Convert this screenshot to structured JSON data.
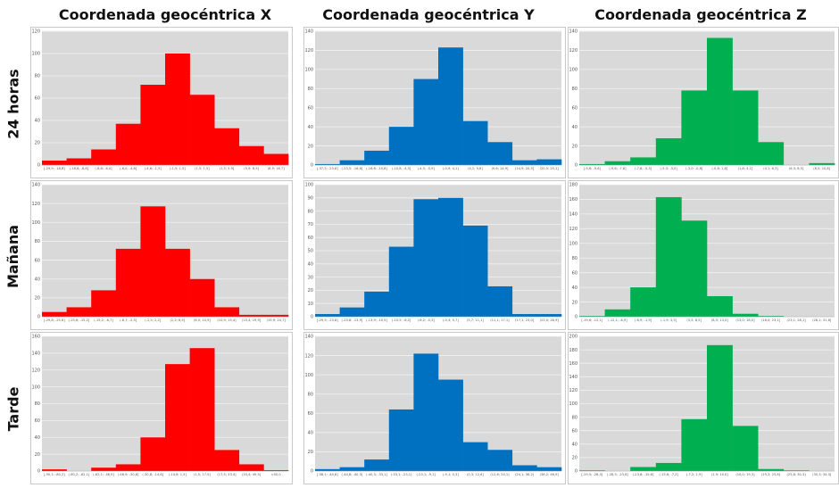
{
  "column_titles": [
    "Coordenada geocéntrica X",
    "Coordenada geocéntrica Y",
    "Coordenada geocéntrica Z"
  ],
  "row_titles": [
    "24 horas",
    "Mañana",
    "Tarde"
  ],
  "colors": {
    "X": "#ff0000",
    "Y": "#0070c0",
    "Z": "#00b050",
    "plot_background": "#d9d9d9"
  },
  "chart_data": [
    {
      "type": "bar",
      "row": "24 horas",
      "column": "Coordenada geocéntrica X",
      "color": "#ff0000",
      "ylim": [
        0,
        120
      ],
      "yticks": [
        0,
        20,
        40,
        60,
        80,
        100,
        120
      ],
      "categories": [
        "[-29,9; -18,8]",
        "(-18,8; -8,8]",
        "(-8,8; -6,0]",
        "(-6,0; -4,6]",
        "(-4,6; -1,5]",
        "(-1,5; 1,5]",
        "(1,5; 1,5]",
        "(1,5; 5,9]",
        "(5,9; 8,9]",
        "(8,9; 16,7]"
      ],
      "values": [
        4,
        6,
        14,
        37,
        72,
        100,
        63,
        33,
        17,
        10
      ],
      "grid": true
    },
    {
      "type": "bar",
      "row": "24 horas",
      "column": "Coordenada geocéntrica Y",
      "color": "#0070c0",
      "ylim": [
        0,
        140
      ],
      "yticks": [
        0,
        20,
        40,
        60,
        80,
        100,
        120,
        140
      ],
      "categories": [
        "[-37,5; -23,8]",
        "(-23,5; -16,6]",
        "(-16,6; -10,8]",
        "(-10,8; -4,5]",
        "(-4,5; -0,9]",
        "(-0,9; 4,1]",
        "(4,1; 9,6]",
        "(9,6; 14,9]",
        "(14,9; 20,5]",
        "(20,5; 25,1]"
      ],
      "values": [
        1,
        5,
        15,
        40,
        90,
        123,
        46,
        24,
        5,
        6
      ],
      "grid": true
    },
    {
      "type": "bar",
      "row": "24 horas",
      "column": "Coordenada geocéntrica Z",
      "color": "#00b050",
      "ylim": [
        0,
        140
      ],
      "yticks": [
        0,
        20,
        40,
        60,
        80,
        100,
        120,
        140
      ],
      "categories": [
        "[-9,6; -9,6]",
        "(-9,6; -7,8]",
        "(-7,8; -5,3]",
        "(-5,3; -3,0]",
        "(-3,0; -0,8]",
        "(-0,8; 1,8]",
        "(1,8; 4,1]",
        "(4,1; 6,3]",
        "(6,3; 8,5]",
        "(8,5; 10,8]"
      ],
      "values": [
        1,
        4,
        8,
        28,
        78,
        133,
        78,
        24,
        0,
        2
      ],
      "grid": true
    },
    {
      "type": "bar",
      "row": "Mañana",
      "column": "Coordenada geocéntrica X",
      "color": "#ff0000",
      "ylim": [
        0,
        140
      ],
      "yticks": [
        0,
        20,
        40,
        60,
        80,
        100,
        120,
        140
      ],
      "categories": [
        "[-29,8; -25,6]",
        "(-25,6; -15,2]",
        "(-15,2; -6,7]",
        "(-6,7; -2,5]",
        "(-2,5; 2,2]",
        "(2,2; 6,5]",
        "(6,5; 10,9]",
        "(10,9; 15,4]",
        "(15,4; 19,9]",
        "(19,9; 24,7]"
      ],
      "values": [
        5,
        10,
        28,
        72,
        117,
        72,
        40,
        10,
        2,
        2
      ],
      "grid": true
    },
    {
      "type": "bar",
      "row": "Mañana",
      "column": "Coordenada geocéntrica Y",
      "color": "#0070c0",
      "ylim": [
        0,
        100
      ],
      "yticks": [
        0,
        10,
        20,
        30,
        40,
        50,
        60,
        70,
        80,
        90,
        100
      ],
      "categories": [
        "[-29,5; -23,8]",
        "(-23,8; -13,9]",
        "(-13,9; -10,5]",
        "(-10,5; -6,2]",
        "(-6,2; -0,3]",
        "(-0,3; 5,7]",
        "(5,7; 11,1]",
        "(11,1; 17,1]",
        "(17,1; 23,0]",
        "(23,0; 28,9]"
      ],
      "values": [
        2,
        7,
        19,
        53,
        89,
        90,
        69,
        23,
        2,
        2
      ],
      "grid": true
    },
    {
      "type": "bar",
      "row": "Mañana",
      "column": "Coordenada geocéntrica Z",
      "color": "#00b050",
      "ylim": [
        0,
        180
      ],
      "yticks": [
        0,
        20,
        40,
        60,
        80,
        100,
        120,
        140,
        160,
        180
      ],
      "categories": [
        "[-19,6; -12,1]",
        "(-12,1; -6,9]",
        "(-6,9; -1,9]",
        "(-1,9; 3,5]",
        "(3,5; 8,5]",
        "(8,5; 13,0]",
        "(13,0; 18,0]",
        "(18,0; 23,1]",
        "(23,1; 28,1]",
        "(28,1; 31,6]"
      ],
      "values": [
        1,
        10,
        40,
        163,
        131,
        28,
        4,
        1,
        0,
        0
      ],
      "grid": true
    },
    {
      "type": "bar",
      "row": "Tarde",
      "column": "Coordenada geocéntrica X",
      "color": "#ff0000",
      "ylim": [
        0,
        160
      ],
      "yticks": [
        0,
        20,
        40,
        60,
        80,
        100,
        120,
        140,
        160
      ],
      "categories": [
        "[-90,1; -80,2]",
        "(-80,2; -62,1]",
        "(-62,1; -46,9]",
        "(-46,9; -30,8]",
        "(-30,8; -14,6]",
        "(-14,6; 1,5]",
        "(1,5; 17,5]",
        "(17,5; 33,4]",
        "(33,4; 49,5]",
        ">50,0"
      ],
      "values": [
        2,
        0,
        4,
        8,
        40,
        127,
        146,
        25,
        8,
        1
      ],
      "grid": true
    },
    {
      "type": "bar",
      "row": "Tarde",
      "column": "Coordenada geocéntrica Y",
      "color": "#0070c0",
      "ylim": [
        0,
        140
      ],
      "yticks": [
        0,
        20,
        40,
        60,
        80,
        100,
        120,
        140
      ],
      "categories": [
        "[-58,1; -44,8]",
        "(-44,8; -40,3]",
        "(-40,3; -33,1]",
        "(-33,1; -23,1]",
        "(-23,1; -9,1]",
        "(-9,1; 0,3]",
        "(0,3; 12,6]",
        "(12,6; 24,1]",
        "(24,1; 36,2]",
        "(36,2; 46,9]"
      ],
      "values": [
        2,
        4,
        12,
        64,
        122,
        95,
        30,
        22,
        6,
        4
      ],
      "grid": true
    },
    {
      "type": "bar",
      "row": "Tarde",
      "column": "Coordenada geocéntrica Z",
      "color": "#00b050",
      "ylim": [
        0,
        200
      ],
      "yticks": [
        0,
        20,
        40,
        60,
        80,
        100,
        120,
        140,
        160,
        180,
        200
      ],
      "categories": [
        "[-29,5; -28,3]",
        "(-28,3; -23,8]",
        "(-23,8; -15,6]",
        "(-15,6; -7,2]",
        "(-7,2; 1,9]",
        "(1,9; 10,0]",
        "(10,0; 19,3]",
        "(19,3; 25,8]",
        "(25,8; 30,3]",
        "(30,3; 34,3]"
      ],
      "values": [
        1,
        0,
        6,
        12,
        77,
        187,
        67,
        3,
        1,
        0
      ],
      "grid": true
    }
  ]
}
